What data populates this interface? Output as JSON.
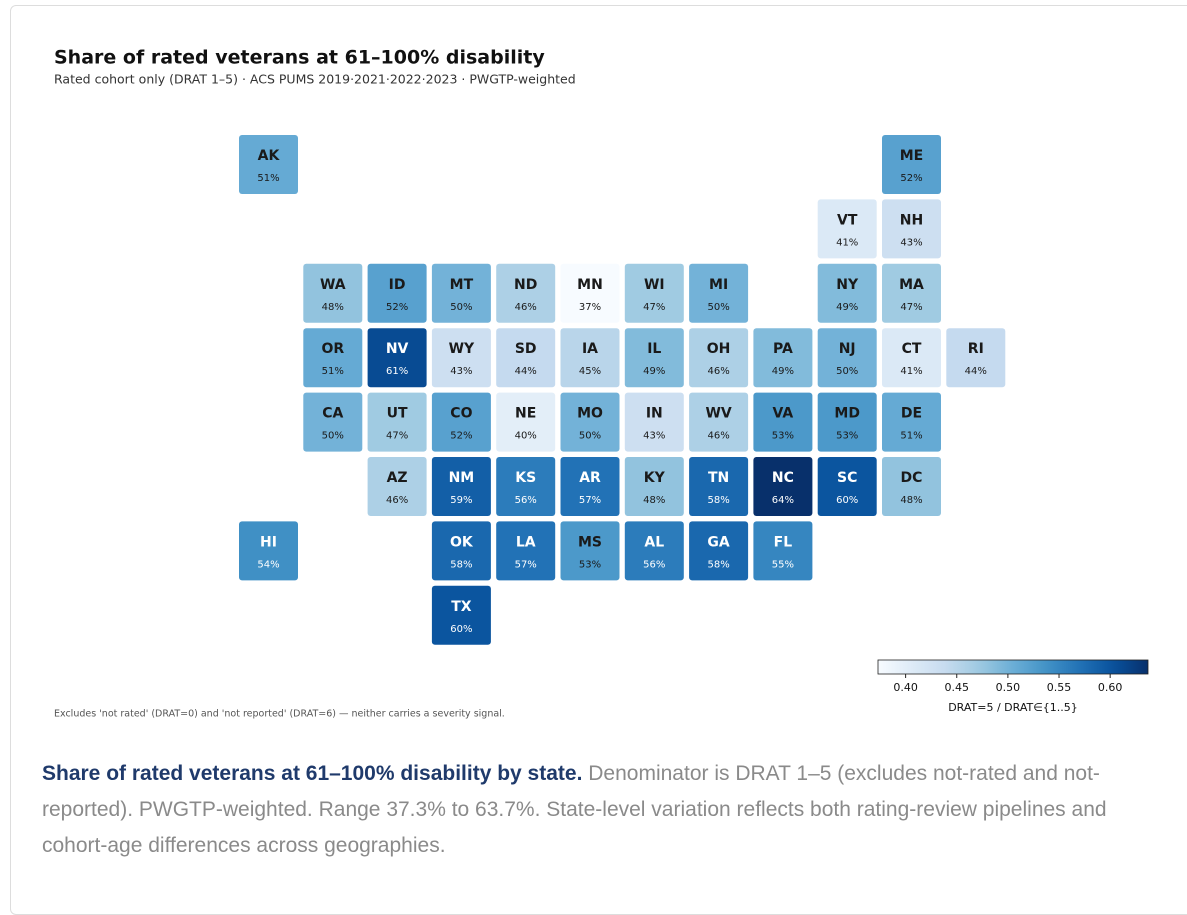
{
  "chart_data": {
    "type": "tilemap",
    "title": "Share of rated veterans at 61–100% disability",
    "subtitle": "Rated cohort only (DRAT 1–5) · ACS PUMS 2019·2021·2022·2023 · PWGTP-weighted",
    "note": "Excludes 'not rated' (DRAT=0) and 'not reported' (DRAT=6) — neither carries a severity signal.",
    "categories": [
      "AK",
      "ME",
      "VT",
      "NH",
      "WA",
      "ID",
      "MT",
      "ND",
      "MN",
      "WI",
      "MI",
      "NY",
      "MA",
      "OR",
      "NV",
      "WY",
      "SD",
      "IA",
      "IL",
      "OH",
      "PA",
      "NJ",
      "CT",
      "RI",
      "CA",
      "UT",
      "CO",
      "NE",
      "MO",
      "IN",
      "WV",
      "VA",
      "MD",
      "DE",
      "AZ",
      "NM",
      "KS",
      "AR",
      "KY",
      "TN",
      "NC",
      "SC",
      "DC",
      "HI",
      "OK",
      "LA",
      "MS",
      "AL",
      "GA",
      "FL",
      "TX"
    ],
    "values": [
      0.51,
      0.52,
      0.41,
      0.43,
      0.48,
      0.52,
      0.5,
      0.46,
      0.37,
      0.47,
      0.5,
      0.49,
      0.47,
      0.51,
      0.61,
      0.43,
      0.44,
      0.45,
      0.49,
      0.46,
      0.49,
      0.5,
      0.41,
      0.44,
      0.5,
      0.47,
      0.52,
      0.4,
      0.5,
      0.43,
      0.46,
      0.53,
      0.53,
      0.51,
      0.46,
      0.59,
      0.56,
      0.57,
      0.48,
      0.58,
      0.64,
      0.6,
      0.48,
      0.54,
      0.58,
      0.57,
      0.53,
      0.56,
      0.58,
      0.55,
      0.6
    ],
    "value_labels": [
      "51%",
      "52%",
      "41%",
      "43%",
      "48%",
      "52%",
      "50%",
      "46%",
      "37%",
      "47%",
      "50%",
      "49%",
      "47%",
      "51%",
      "61%",
      "43%",
      "44%",
      "45%",
      "49%",
      "46%",
      "49%",
      "50%",
      "41%",
      "44%",
      "50%",
      "47%",
      "52%",
      "40%",
      "50%",
      "43%",
      "46%",
      "53%",
      "53%",
      "51%",
      "46%",
      "59%",
      "56%",
      "57%",
      "48%",
      "58%",
      "64%",
      "60%",
      "48%",
      "54%",
      "58%",
      "57%",
      "53%",
      "56%",
      "58%",
      "55%",
      "60%"
    ],
    "colors": [
      "#f7fbff",
      "#deebf7",
      "#c6dbef",
      "#9ecae1",
      "#6baed6",
      "#4292c6",
      "#2171b5",
      "#08519c",
      "#08306b"
    ],
    "clim": [
      0.373,
      0.637
    ],
    "cticks": [
      {
        "value": 0.4,
        "label": "0.40"
      },
      {
        "value": 0.45,
        "label": "0.45"
      },
      {
        "value": 0.5,
        "label": "0.50"
      },
      {
        "value": 0.55,
        "label": "0.55"
      },
      {
        "value": 0.6,
        "label": "0.60"
      }
    ],
    "clabel": "DRAT=5 / DRAT∈{1..5}"
  },
  "caption": {
    "lead": "Share of rated veterans at 61–100% disability by state.",
    "text": "Denominator is DRAT 1–5 (excludes not-rated and not-reported). PWGTP-weighted. Range 37.3% to 63.7%. State-level variation reflects both rating-review pipelines and cohort-age differences across geographies."
  }
}
